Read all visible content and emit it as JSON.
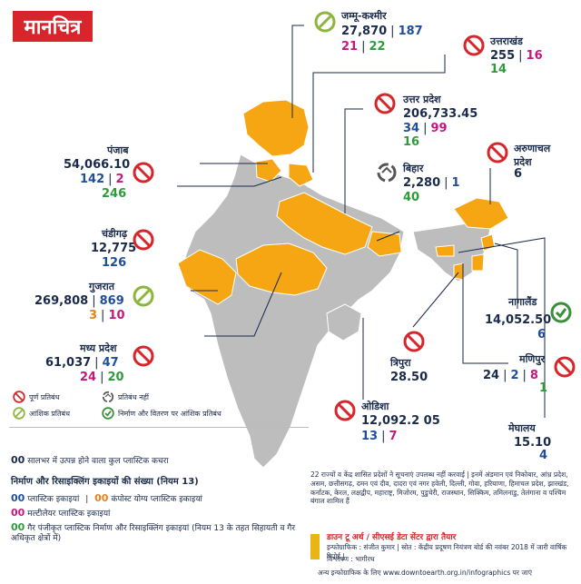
{
  "title": "मानचित्र",
  "states": {
    "jk": {
      "name": "जम्मू-कश्मीर",
      "value": "27,870",
      "a": "187",
      "b": "21",
      "c": "22"
    },
    "uk": {
      "name": "उत्तराखंड",
      "value": "255",
      "a": "16",
      "b": "14"
    },
    "up": {
      "name": "उत्तर प्रदेश",
      "value": "206,733.45",
      "a": "34",
      "b": "99",
      "c": "16"
    },
    "pb": {
      "name": "पंजाब",
      "value": "54,066.10",
      "a": "142",
      "b": "2",
      "c": "246"
    },
    "ch": {
      "name": "चंडीगढ़",
      "value": "12,775",
      "a": "126"
    },
    "gj": {
      "name": "गुजरात",
      "value": "269,808",
      "a": "869",
      "b": "3",
      "c": "10"
    },
    "mp": {
      "name": "मध्य प्रदेश",
      "value": "61,037",
      "a": "47",
      "b": "24",
      "c": "20"
    },
    "br": {
      "name": "बिहार",
      "value": "2,280",
      "a": "1",
      "b": "40"
    },
    "ar": {
      "name": "अरुणाचल प्रदेश",
      "value": "6"
    },
    "nl": {
      "name": "नागालैंड",
      "value": "14,052.50",
      "a": "6"
    },
    "mn": {
      "name": "मणिपुर",
      "value": "24",
      "a": "2",
      "b": "8",
      "c": "1"
    },
    "tr": {
      "name": "त्रिपुरा",
      "value": "28.50"
    },
    "od": {
      "name": "ओडिशा",
      "value": "12,092.2 05",
      "a": "13",
      "b": "7"
    },
    "ml": {
      "name": "मेघालय",
      "value": "15.10",
      "a": "4"
    }
  },
  "legend": {
    "full_ban": "पूर्ण प्रतिबंध",
    "no_ban": "प्रतिबंध नहीं",
    "partial_ban": "आंशिक प्रतिबंध",
    "mfg_ban": "निर्माण और वितरण पर आंशिक प्रतिबंध"
  },
  "key": {
    "zero": "00",
    "annual": "सालभर में उत्पन्न होने वाला कुल प्लास्टिक कचरा",
    "units_title": "निर्माण और रिसाइक्लिंग इकाइयों की संख्या (नियम 13)",
    "plastic_units": "प्लास्टिक इकाइयां",
    "compost_units": "कंपोस्ट योग्य प्लास्टिक इकाइयां",
    "multilayer_units": "मल्टीलेयर प्लास्टिक इकाइयां",
    "unregistered": "गैर पंजीकृत प्लास्टिक निर्माण और रिसाइक्लिंग इकाइयां (नियम 13 के तहत सिहायती व गैर अधिकृत क्षेत्रों में)"
  },
  "note": "22 राज्यों व केंद्र शासित प्रदेशों ने सूचनाएं उपलब्ध नहीं करवाई | इनमें अंडमान एवं निकोबार, आंध्र प्रदेश, असम, छत्तीसगढ़, दमन एवं दीव, दादरा एवं नगर हवेली, दिल्ली, गोवा, हरियाणा, हिमाचल प्रदेश, झारखंड, कर्नाटक, केरल, लक्षद्वीप, महाराष्ट्र, मिजोरम, पुडुचेरी, राजस्थान, सिक्किम, तमिलनाडु, तेलंगाना व पश्चिम बंगाल शामिल हैं",
  "credits": {
    "center": "डाउन टू अर्थ / सीएसई डेटा सेंटर द्वारा तैयार",
    "source": "इन्फोग्राफिक : संजीत कुमार | स्रोत : केंद्रीय प्रदूषण नियंत्रण बोर्ड की नवंबर 2018 में जारी वार्षिक रिपोर्ट |",
    "analysis": "विश्लेषण : भागीरथ",
    "more": "अन्य इन्फोग्राफिक के लिए www.downtoearth.org.in/infographics पर जाएं"
  },
  "colors": {
    "highlight": "#f5a612",
    "gray": "#bdbdbd",
    "ban": "#d6262b",
    "partial": "#8bb53b",
    "none": "#555555",
    "mfg": "#3a8f3a",
    "blue": "#1f4e9c",
    "magenta": "#c4187d",
    "green": "#2d9b3a",
    "orange": "#e8811a"
  }
}
